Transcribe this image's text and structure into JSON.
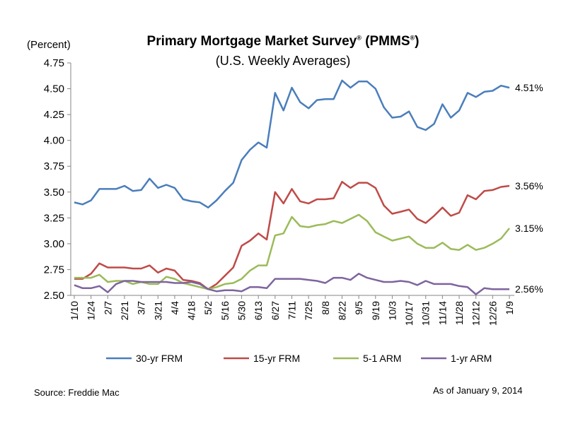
{
  "chart_data": {
    "type": "line",
    "title_main": "Primary Mortgage Market Survey",
    "title_sup": "®",
    "title_mid": " (PMMS",
    "title_sup2": "®",
    "title_end": ")",
    "subtitle": "(U.S. Weekly Averages)",
    "ylabel": "(Percent)",
    "ylim": [
      2.5,
      4.75
    ],
    "yticks": [
      "2.50",
      "2.75",
      "3.00",
      "3.25",
      "3.50",
      "3.75",
      "4.00",
      "4.25",
      "4.50",
      "4.75"
    ],
    "x_tick_labels": [
      "1/10",
      "1/24",
      "2/7",
      "2/21",
      "3/7",
      "3/21",
      "4/4",
      "4/18",
      "5/2",
      "5/16",
      "5/30",
      "6/13",
      "6/27",
      "7/11",
      "7/25",
      "8/8",
      "8/22",
      "9/5",
      "9/19",
      "10/3",
      "10/17",
      "10/31",
      "11/14",
      "11/28",
      "12/12",
      "12/26",
      "1/9"
    ],
    "grid": false,
    "legend_position": "bottom",
    "series": [
      {
        "name": "30-yr FRM",
        "color": "#4A7EBB",
        "end_label": "4.51%",
        "values": [
          3.4,
          3.38,
          3.42,
          3.53,
          3.53,
          3.53,
          3.56,
          3.51,
          3.52,
          3.63,
          3.54,
          3.57,
          3.54,
          3.43,
          3.41,
          3.4,
          3.35,
          3.42,
          3.51,
          3.59,
          3.81,
          3.91,
          3.98,
          3.93,
          4.46,
          4.29,
          4.51,
          4.37,
          4.31,
          4.39,
          4.4,
          4.4,
          4.58,
          4.51,
          4.57,
          4.57,
          4.5,
          4.32,
          4.22,
          4.23,
          4.28,
          4.13,
          4.1,
          4.16,
          4.35,
          4.22,
          4.29,
          4.46,
          4.42,
          4.47,
          4.48,
          4.53,
          4.51
        ]
      },
      {
        "name": "15-yr FRM",
        "color": "#BE4B48",
        "end_label": "3.56%",
        "values": [
          2.66,
          2.66,
          2.71,
          2.81,
          2.77,
          2.77,
          2.77,
          2.76,
          2.76,
          2.79,
          2.72,
          2.76,
          2.74,
          2.65,
          2.64,
          2.62,
          2.56,
          2.61,
          2.69,
          2.77,
          2.98,
          3.03,
          3.1,
          3.04,
          3.5,
          3.39,
          3.53,
          3.41,
          3.39,
          3.43,
          3.43,
          3.44,
          3.6,
          3.54,
          3.59,
          3.59,
          3.54,
          3.37,
          3.29,
          3.31,
          3.33,
          3.24,
          3.2,
          3.27,
          3.35,
          3.27,
          3.3,
          3.47,
          3.43,
          3.51,
          3.52,
          3.55,
          3.56
        ]
      },
      {
        "name": "5-1 ARM",
        "color": "#9BBB59",
        "end_label": "3.15%",
        "values": [
          2.67,
          2.67,
          2.67,
          2.7,
          2.63,
          2.64,
          2.64,
          2.61,
          2.63,
          2.61,
          2.61,
          2.68,
          2.66,
          2.62,
          2.6,
          2.58,
          2.56,
          2.58,
          2.61,
          2.62,
          2.66,
          2.74,
          2.79,
          2.79,
          3.08,
          3.1,
          3.26,
          3.17,
          3.16,
          3.18,
          3.19,
          3.22,
          3.2,
          3.24,
          3.28,
          3.22,
          3.11,
          3.07,
          3.03,
          3.05,
          3.07,
          3.0,
          2.96,
          2.96,
          3.01,
          2.95,
          2.94,
          2.99,
          2.94,
          2.96,
          3.0,
          3.05,
          3.15
        ]
      },
      {
        "name": "1-yr ARM",
        "color": "#7E649E",
        "end_label": "2.56%",
        "values": [
          2.6,
          2.57,
          2.57,
          2.59,
          2.53,
          2.61,
          2.64,
          2.64,
          2.63,
          2.63,
          2.63,
          2.63,
          2.62,
          2.62,
          2.63,
          2.61,
          2.56,
          2.54,
          2.55,
          2.55,
          2.54,
          2.58,
          2.58,
          2.57,
          2.66,
          2.66,
          2.66,
          2.66,
          2.65,
          2.64,
          2.62,
          2.67,
          2.67,
          2.65,
          2.71,
          2.67,
          2.65,
          2.63,
          2.63,
          2.64,
          2.63,
          2.6,
          2.64,
          2.61,
          2.61,
          2.61,
          2.59,
          2.58,
          2.51,
          2.57,
          2.56,
          2.56,
          2.56
        ]
      }
    ]
  },
  "footer": {
    "source": "Source: Freddie Mac",
    "as_of": "As of January 9, 2014"
  }
}
